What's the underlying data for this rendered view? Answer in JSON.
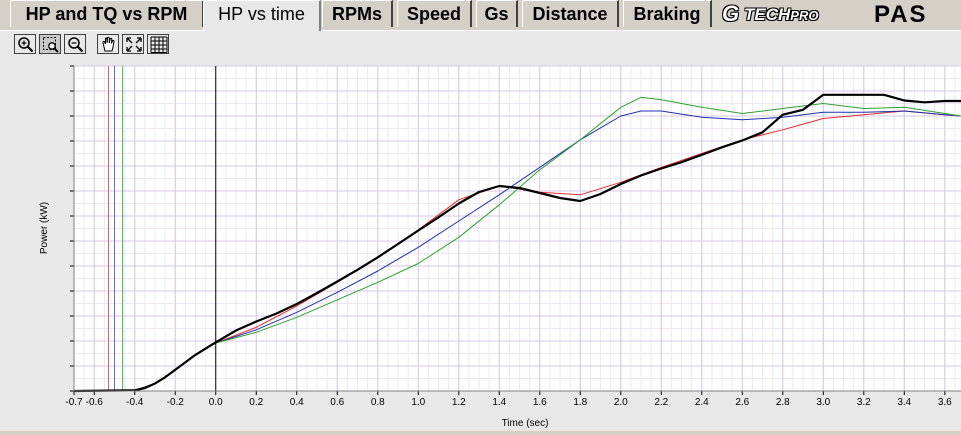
{
  "tabs": [
    {
      "label": "HP and TQ vs RPM",
      "active": false
    },
    {
      "label": "HP vs time",
      "active": true
    },
    {
      "label": "RPMs",
      "active": false
    },
    {
      "label": "Speed",
      "active": false
    },
    {
      "label": "Gs",
      "active": false
    },
    {
      "label": "Distance",
      "active": false
    },
    {
      "label": "Braking",
      "active": false
    }
  ],
  "logo": {
    "g": "G",
    "tech": "TECH",
    "pro": "PRO",
    "pas": "PAS"
  },
  "toolbar": {
    "icons": [
      "zoom-in-icon",
      "zoom-box-icon",
      "zoom-out-icon",
      "pan-hand-icon",
      "fit-view-icon",
      "grid-icon"
    ],
    "pressed": "zoom-box-icon"
  },
  "chart_data": {
    "type": "line",
    "title": "",
    "xlabel": "Time (sec)",
    "ylabel": "Power (kW)",
    "xlim": [
      -0.7,
      3.68
    ],
    "ylim": [
      0,
      13
    ],
    "x_ticks": [
      -0.7,
      -0.6,
      -0.4,
      -0.2,
      0.0,
      0.2,
      0.4,
      0.6,
      0.8,
      1.0,
      1.2,
      1.4,
      1.6,
      1.8,
      2.0,
      2.2,
      2.4,
      2.6,
      2.8,
      3.0,
      3.2,
      3.4,
      3.6
    ],
    "x_tick_labels": [
      "-0.7",
      "-0.6",
      "-0.4",
      "-0.2",
      "0.0",
      "0.2",
      "0.4",
      "0.6",
      "0.8",
      "1.0",
      "1.2",
      "1.4",
      "1.6",
      "1.8",
      "2.0",
      "2.2",
      "2.4",
      "2.6",
      "2.8",
      "3.0",
      "3.2",
      "3.4",
      "3.6"
    ],
    "y_major_step": 1,
    "grid": true,
    "colors": {
      "plot_bg": "#ffffff",
      "grid_major": "#d6c8e6",
      "grid_minor": "#efe7f5",
      "zero_line": "#000000"
    },
    "markers": [
      {
        "x": -0.53,
        "color": "#e05a5a"
      },
      {
        "x": -0.5,
        "color": "#6070d8"
      },
      {
        "x": -0.46,
        "color": "#50b050"
      }
    ],
    "series": [
      {
        "color": "#000000",
        "width": 2.2,
        "x": [
          -0.7,
          -0.4,
          -0.35,
          -0.3,
          -0.25,
          -0.2,
          -0.1,
          0.0,
          0.1,
          0.2,
          0.3,
          0.4,
          0.5,
          0.6,
          0.7,
          0.8,
          0.9,
          1.0,
          1.1,
          1.2,
          1.3,
          1.4,
          1.5,
          1.6,
          1.7,
          1.8,
          1.9,
          2.0,
          2.1,
          2.2,
          2.3,
          2.4,
          2.5,
          2.6,
          2.7,
          2.8,
          2.9,
          3.0,
          3.1,
          3.2,
          3.3,
          3.4,
          3.5,
          3.6,
          3.68
        ],
        "y": [
          0.0,
          0.03,
          0.12,
          0.3,
          0.55,
          0.85,
          1.45,
          1.95,
          2.42,
          2.78,
          3.1,
          3.48,
          3.92,
          4.38,
          4.85,
          5.35,
          5.88,
          6.42,
          6.95,
          7.5,
          7.96,
          8.2,
          8.12,
          7.92,
          7.72,
          7.6,
          7.88,
          8.28,
          8.62,
          8.9,
          9.15,
          9.45,
          9.75,
          10.02,
          10.35,
          11.05,
          11.25,
          11.85,
          11.85,
          11.85,
          11.85,
          11.62,
          11.55,
          11.6,
          11.6
        ]
      },
      {
        "color": "#e03030",
        "width": 1,
        "x": [
          -0.7,
          -0.4,
          -0.3,
          -0.2,
          -0.1,
          0.0,
          0.2,
          0.4,
          0.6,
          0.8,
          1.0,
          1.2,
          1.4,
          1.6,
          1.8,
          2.0,
          2.2,
          2.4,
          2.6,
          2.8,
          3.0,
          3.2,
          3.4,
          3.6,
          3.68
        ],
        "y": [
          0.0,
          0.03,
          0.3,
          0.85,
          1.45,
          1.92,
          2.55,
          3.4,
          4.35,
          5.35,
          6.45,
          7.65,
          8.2,
          7.95,
          7.85,
          8.35,
          8.95,
          9.5,
          10.05,
          10.45,
          10.9,
          11.05,
          11.2,
          11.05,
          11.0
        ]
      },
      {
        "color": "#2030b0",
        "width": 1,
        "x": [
          -0.7,
          -0.4,
          -0.3,
          -0.2,
          -0.1,
          0.0,
          0.2,
          0.4,
          0.6,
          0.8,
          1.0,
          1.2,
          1.4,
          1.6,
          1.8,
          2.0,
          2.1,
          2.2,
          2.4,
          2.6,
          2.8,
          3.0,
          3.2,
          3.4,
          3.6,
          3.68
        ],
        "y": [
          0.0,
          0.03,
          0.3,
          0.85,
          1.45,
          1.92,
          2.45,
          3.15,
          3.95,
          4.8,
          5.75,
          6.8,
          7.85,
          8.95,
          10.05,
          11.0,
          11.2,
          11.2,
          10.95,
          10.85,
          10.95,
          11.15,
          11.15,
          11.2,
          11.05,
          11.0
        ]
      },
      {
        "color": "#30a030",
        "width": 1,
        "x": [
          -0.7,
          -0.4,
          -0.3,
          -0.2,
          -0.1,
          0.0,
          0.2,
          0.4,
          0.6,
          0.8,
          1.0,
          1.2,
          1.4,
          1.6,
          1.8,
          2.0,
          2.1,
          2.2,
          2.4,
          2.6,
          2.8,
          3.0,
          3.2,
          3.4,
          3.6,
          3.68
        ],
        "y": [
          0.0,
          0.03,
          0.3,
          0.85,
          1.45,
          1.92,
          2.35,
          2.95,
          3.65,
          4.35,
          5.1,
          6.15,
          7.45,
          8.85,
          10.05,
          11.35,
          11.75,
          11.65,
          11.35,
          11.1,
          11.3,
          11.5,
          11.3,
          11.35,
          11.1,
          11.0
        ]
      }
    ]
  }
}
